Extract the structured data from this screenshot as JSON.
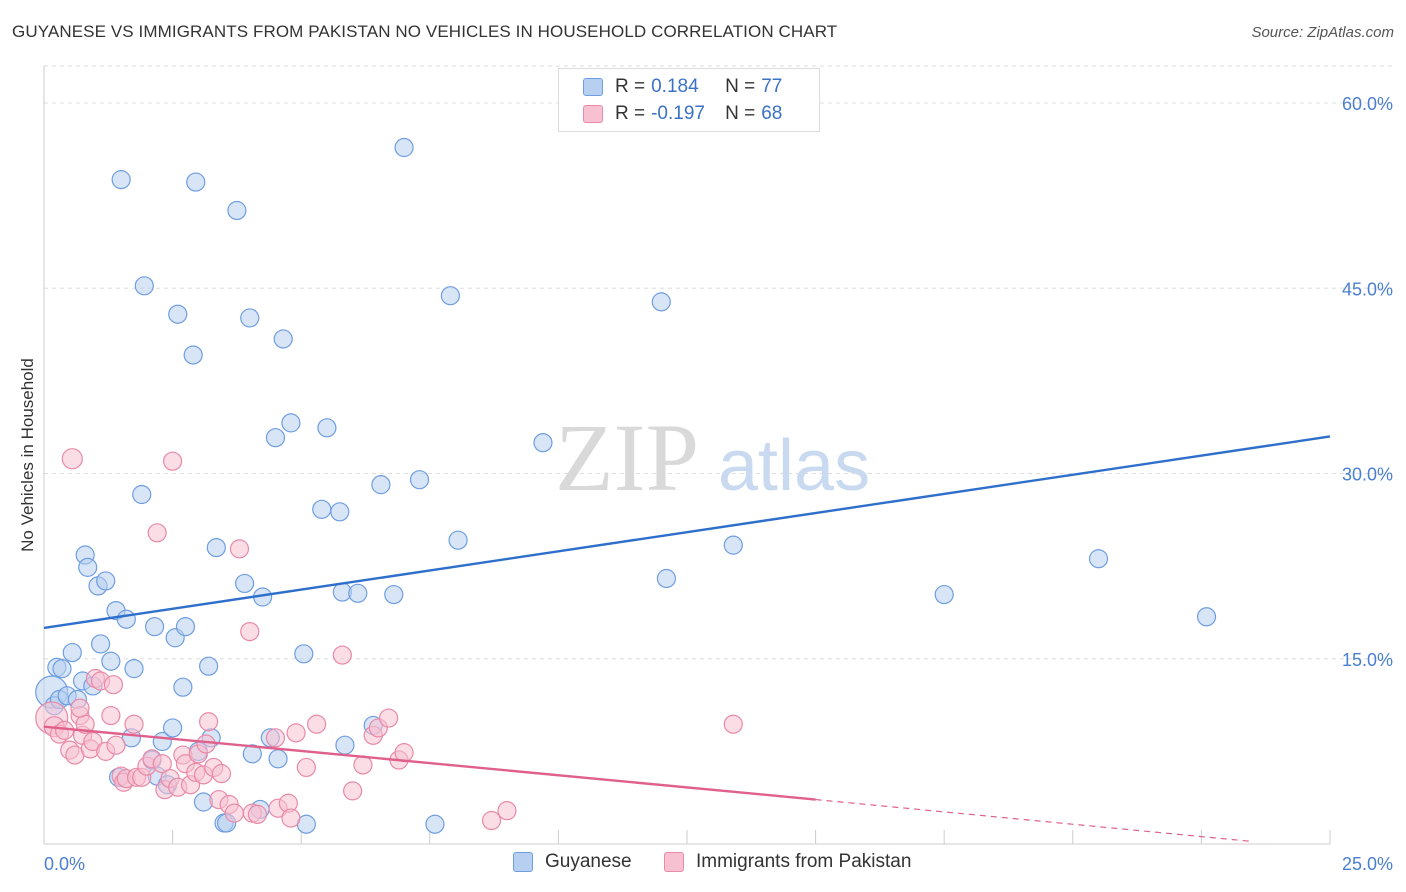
{
  "title": "GUYANESE VS IMMIGRANTS FROM PAKISTAN NO VEHICLES IN HOUSEHOLD CORRELATION CHART",
  "source": "Source: ZipAtlas.com",
  "watermark": {
    "zip": "ZIP",
    "atlas": "atlas"
  },
  "legend": {
    "guyanese": {
      "r_label": "R =",
      "r_value": "0.184",
      "n_label": "N =",
      "n_value": "77"
    },
    "pakistan": {
      "r_label": "R =",
      "r_value": "-0.197",
      "n_label": "N =",
      "n_value": "68"
    }
  },
  "bottom_legend": {
    "guyanese": "Guyanese",
    "pakistan": "Immigrants from Pakistan"
  },
  "colors": {
    "guyanese_fill": "#b7cff1",
    "guyanese_stroke": "#6f9ee0",
    "guyanese_line": "#2f6fcc",
    "pakistan_fill": "#f7c1d2",
    "pakistan_stroke": "#e88aa8",
    "pakistan_line": "#e0608c",
    "grid": "#dddddd",
    "axis_text": "#4a7fd0"
  },
  "chart_data": {
    "type": "scatter",
    "title": "GUYANESE VS IMMIGRANTS FROM PAKISTAN NO VEHICLES IN HOUSEHOLD CORRELATION CHART",
    "xlabel": "",
    "ylabel": "No Vehicles in Household",
    "xlim": [
      0,
      25
    ],
    "ylim": [
      0,
      63
    ],
    "x_tick_labels": [
      {
        "value": 0,
        "label": "0.0%"
      },
      {
        "value": 25,
        "label": "25.0%"
      }
    ],
    "y_tick_labels": [
      {
        "value": 15,
        "label": "15.0%"
      },
      {
        "value": 30,
        "label": "30.0%"
      },
      {
        "value": 45,
        "label": "45.0%"
      },
      {
        "value": 60,
        "label": "60.0%"
      }
    ],
    "x_minor_ticks": [
      0,
      2.5,
      5,
      7.5,
      10,
      12.5,
      15,
      17.5,
      20,
      22.5,
      25
    ],
    "series": [
      {
        "name": "Guyanese",
        "r": 0.184,
        "n": 77,
        "trend": {
          "x0": 0,
          "y0": 17.5,
          "x1": 25,
          "y1": 33.0
        },
        "points": [
          [
            0.15,
            12.3
          ],
          [
            0.25,
            14.3
          ],
          [
            0.2,
            11.2
          ],
          [
            0.3,
            11.7
          ],
          [
            0.35,
            14.2
          ],
          [
            0.45,
            12.0
          ],
          [
            0.55,
            15.5
          ],
          [
            0.65,
            11.7
          ],
          [
            0.75,
            13.2
          ],
          [
            0.8,
            23.4
          ],
          [
            0.85,
            22.4
          ],
          [
            0.95,
            12.8
          ],
          [
            1.05,
            20.9
          ],
          [
            1.1,
            16.2
          ],
          [
            1.2,
            21.3
          ],
          [
            1.3,
            14.8
          ],
          [
            1.4,
            18.9
          ],
          [
            1.45,
            5.4
          ],
          [
            1.6,
            18.2
          ],
          [
            1.7,
            8.6
          ],
          [
            1.75,
            14.2
          ],
          [
            1.9,
            28.3
          ],
          [
            1.95,
            45.2
          ],
          [
            2.1,
            6.8
          ],
          [
            2.15,
            17.6
          ],
          [
            2.2,
            5.5
          ],
          [
            2.3,
            8.3
          ],
          [
            2.4,
            4.8
          ],
          [
            2.5,
            9.4
          ],
          [
            2.55,
            16.7
          ],
          [
            2.6,
            42.9
          ],
          [
            2.7,
            12.7
          ],
          [
            2.75,
            17.6
          ],
          [
            2.9,
            39.6
          ],
          [
            2.95,
            53.6
          ],
          [
            3.0,
            7.5
          ],
          [
            3.1,
            3.4
          ],
          [
            3.2,
            14.4
          ],
          [
            3.25,
            8.6
          ],
          [
            3.35,
            24.0
          ],
          [
            3.5,
            1.7
          ],
          [
            3.55,
            1.7
          ],
          [
            3.75,
            51.3
          ],
          [
            3.9,
            21.1
          ],
          [
            4.0,
            42.6
          ],
          [
            4.05,
            7.3
          ],
          [
            4.2,
            2.8
          ],
          [
            4.25,
            20.0
          ],
          [
            4.4,
            8.6
          ],
          [
            4.5,
            32.9
          ],
          [
            4.55,
            6.9
          ],
          [
            4.65,
            40.9
          ],
          [
            4.8,
            34.1
          ],
          [
            5.05,
            15.4
          ],
          [
            5.1,
            1.6
          ],
          [
            5.4,
            27.1
          ],
          [
            5.5,
            33.7
          ],
          [
            5.75,
            26.9
          ],
          [
            5.8,
            20.4
          ],
          [
            5.85,
            8.0
          ],
          [
            6.1,
            20.3
          ],
          [
            6.4,
            9.6
          ],
          [
            6.55,
            29.1
          ],
          [
            6.8,
            20.2
          ],
          [
            7.0,
            56.4
          ],
          [
            7.3,
            29.5
          ],
          [
            7.6,
            1.6
          ],
          [
            7.9,
            44.4
          ],
          [
            8.05,
            24.6
          ],
          [
            9.7,
            32.5
          ],
          [
            12.0,
            43.9
          ],
          [
            12.1,
            21.5
          ],
          [
            13.4,
            24.2
          ],
          [
            1.5,
            53.8
          ],
          [
            17.5,
            20.2
          ],
          [
            20.5,
            23.1
          ],
          [
            22.6,
            18.4
          ]
        ],
        "point_radius": [
          16,
          9,
          9,
          9,
          9,
          9,
          9,
          9,
          9,
          9,
          9,
          9,
          9,
          9,
          9,
          9,
          9,
          9,
          9,
          9,
          9,
          9,
          9,
          9,
          9,
          9,
          9,
          9,
          9,
          9,
          9,
          9,
          9,
          9,
          9,
          9,
          9,
          9,
          9,
          9,
          9,
          9,
          9,
          9,
          9,
          9,
          9,
          9,
          9,
          9,
          9,
          9,
          9,
          9,
          9,
          9,
          9,
          9,
          9,
          9,
          9,
          9,
          9,
          9,
          9,
          9,
          9,
          9,
          9,
          9,
          9,
          9,
          9,
          9,
          9,
          9,
          9
        ]
      },
      {
        "name": "Immigrants from Pakistan",
        "r": -0.197,
        "n": 68,
        "trend": {
          "x0": 0,
          "y0": 9.5,
          "x1": 15,
          "y1": 3.6
        },
        "trend_dashed": {
          "x0": 15,
          "y0": 3.6,
          "x1": 23.5,
          "y1": 0.2
        },
        "points": [
          [
            0.15,
            10.2
          ],
          [
            0.2,
            9.5
          ],
          [
            0.3,
            8.9
          ],
          [
            0.4,
            9.2
          ],
          [
            0.5,
            7.6
          ],
          [
            0.55,
            31.2
          ],
          [
            0.6,
            7.2
          ],
          [
            0.7,
            10.4
          ],
          [
            0.75,
            8.8
          ],
          [
            0.8,
            9.7
          ],
          [
            0.9,
            7.7
          ],
          [
            0.95,
            8.3
          ],
          [
            1.0,
            13.4
          ],
          [
            1.1,
            13.2
          ],
          [
            1.2,
            7.5
          ],
          [
            1.3,
            10.4
          ],
          [
            1.35,
            12.9
          ],
          [
            1.4,
            8.0
          ],
          [
            1.5,
            5.5
          ],
          [
            1.55,
            5.0
          ],
          [
            1.6,
            5.3
          ],
          [
            1.75,
            9.7
          ],
          [
            1.8,
            5.4
          ],
          [
            1.9,
            5.4
          ],
          [
            2.0,
            6.3
          ],
          [
            2.1,
            6.9
          ],
          [
            2.2,
            25.2
          ],
          [
            2.3,
            6.5
          ],
          [
            2.35,
            4.4
          ],
          [
            2.45,
            5.3
          ],
          [
            2.5,
            31.0
          ],
          [
            2.6,
            4.6
          ],
          [
            2.7,
            7.2
          ],
          [
            2.75,
            6.5
          ],
          [
            2.85,
            4.8
          ],
          [
            2.95,
            5.8
          ],
          [
            3.0,
            7.3
          ],
          [
            3.1,
            5.6
          ],
          [
            3.15,
            8.1
          ],
          [
            3.2,
            9.9
          ],
          [
            3.3,
            6.2
          ],
          [
            3.4,
            3.6
          ],
          [
            3.45,
            5.7
          ],
          [
            3.6,
            3.2
          ],
          [
            3.7,
            2.5
          ],
          [
            3.8,
            23.9
          ],
          [
            4.0,
            17.2
          ],
          [
            4.05,
            2.5
          ],
          [
            4.15,
            2.4
          ],
          [
            4.5,
            8.6
          ],
          [
            4.55,
            2.9
          ],
          [
            4.75,
            3.3
          ],
          [
            4.8,
            2.1
          ],
          [
            4.9,
            9.0
          ],
          [
            5.1,
            6.2
          ],
          [
            5.3,
            9.7
          ],
          [
            5.8,
            15.3
          ],
          [
            6.0,
            4.3
          ],
          [
            6.2,
            6.4
          ],
          [
            6.4,
            8.8
          ],
          [
            6.5,
            9.4
          ],
          [
            6.7,
            10.2
          ],
          [
            6.9,
            6.8
          ],
          [
            7.0,
            7.4
          ],
          [
            8.7,
            1.9
          ],
          [
            9.0,
            2.7
          ],
          [
            13.4,
            9.7
          ],
          [
            0.7,
            11.0
          ]
        ],
        "point_radius": [
          16,
          10,
          9,
          9,
          9,
          10,
          9,
          9,
          9,
          9,
          9,
          9,
          9,
          9,
          9,
          9,
          9,
          9,
          9,
          9,
          9,
          9,
          9,
          9,
          9,
          9,
          9,
          9,
          9,
          9,
          9,
          9,
          9,
          9,
          9,
          9,
          9,
          9,
          9,
          9,
          9,
          9,
          9,
          9,
          9,
          9,
          9,
          9,
          9,
          9,
          9,
          9,
          9,
          9,
          9,
          9,
          9,
          9,
          9,
          9,
          9,
          9,
          9,
          9,
          9,
          9,
          9,
          9
        ]
      }
    ]
  }
}
